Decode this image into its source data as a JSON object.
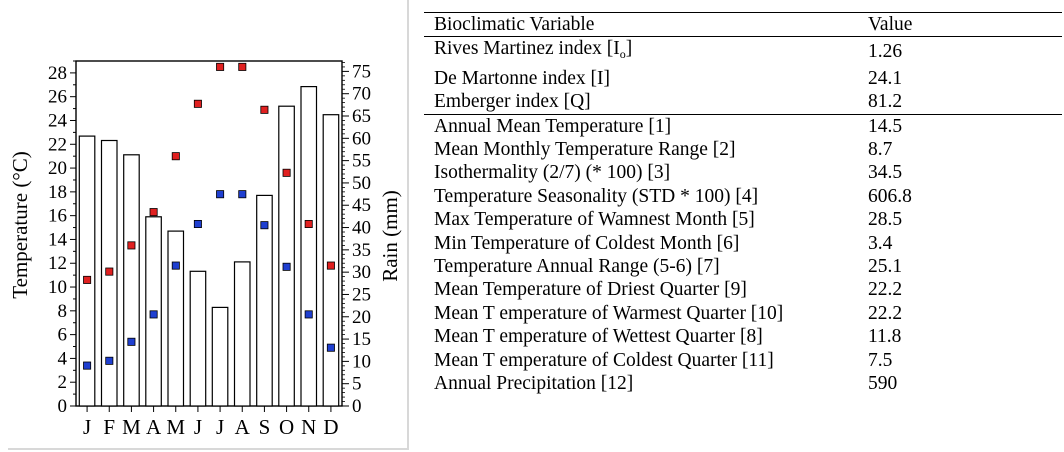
{
  "chart_data": {
    "type": "bar",
    "categories": [
      "J",
      "F",
      "M",
      "A",
      "M",
      "J",
      "J",
      "A",
      "S",
      "O",
      "N",
      "D"
    ],
    "ylabel": "Temperature (°C)",
    "y2label": "Rain (mm)",
    "ylim": [
      0,
      29
    ],
    "y2lim": [
      0,
      77.33
    ],
    "yticks": [
      0,
      2,
      4,
      6,
      8,
      10,
      12,
      14,
      16,
      18,
      20,
      22,
      24,
      26,
      28
    ],
    "y2ticks": [
      0,
      5,
      10,
      15,
      20,
      25,
      30,
      35,
      40,
      45,
      50,
      55,
      60,
      65,
      70,
      75
    ],
    "bar_series": {
      "axis": "right",
      "color": "#ffffff",
      "values": [
        60.5,
        59.5,
        56.3,
        42.4,
        39.2,
        30.2,
        22.1,
        32.3,
        47.2,
        67.2,
        71.6,
        65.3
      ]
    },
    "series": [
      {
        "axis": "left",
        "color": "#e02020",
        "values": [
          10.6,
          11.3,
          13.5,
          16.3,
          21.0,
          25.4,
          28.5,
          28.5,
          24.9,
          19.6,
          15.3,
          11.8
        ]
      },
      {
        "axis": "left",
        "color": "#1f3fd0",
        "values": [
          3.4,
          3.8,
          5.4,
          7.7,
          11.8,
          15.3,
          17.8,
          17.8,
          15.2,
          11.7,
          7.7,
          4.9
        ]
      }
    ]
  },
  "table": {
    "headers": {
      "variable": "Bioclimatic Variable",
      "value": "Value"
    },
    "indices": [
      {
        "label": "Rives Martinez index [I",
        "sub": "o",
        "suffix": "]",
        "value": "1.26"
      },
      {
        "label": "De Martonne index [I]",
        "value": "24.1"
      },
      {
        "label": "Emberger index [Q]",
        "value": "81.2"
      }
    ],
    "rows": [
      {
        "label": "Annual Mean Temperature [1]",
        "value": "14.5"
      },
      {
        "label": "Mean Monthly Temperature Range [2]",
        "value": "8.7"
      },
      {
        "label": "Isothermality (2/7) (* 100) [3]",
        "value": "34.5"
      },
      {
        "label": "Temperature Seasonality (STD * 100) [4]",
        "value": "606.8"
      },
      {
        "label": "Max Temperature of Wamnest Month [5]",
        "value": "28.5"
      },
      {
        "label": "Min Temperature of Coldest Month [6]",
        "value": "3.4"
      },
      {
        "label": "Temperature Annual Range (5-6) [7]",
        "value": "25.1"
      },
      {
        "label": "Mean Temperature of Driest Quarter [9]",
        "value": "22.2"
      },
      {
        "label": "Mean T emperature of Warmest Quarter [10]",
        "value": "22.2"
      },
      {
        "label": "Mean T emperature of Wettest Quarter [8]",
        "value": "11.8"
      },
      {
        "label": "Mean T emperature of Coldest Quarter [11]",
        "value": "7.5"
      },
      {
        "label": "Annual Precipitation [12]",
        "value": "590"
      }
    ]
  }
}
